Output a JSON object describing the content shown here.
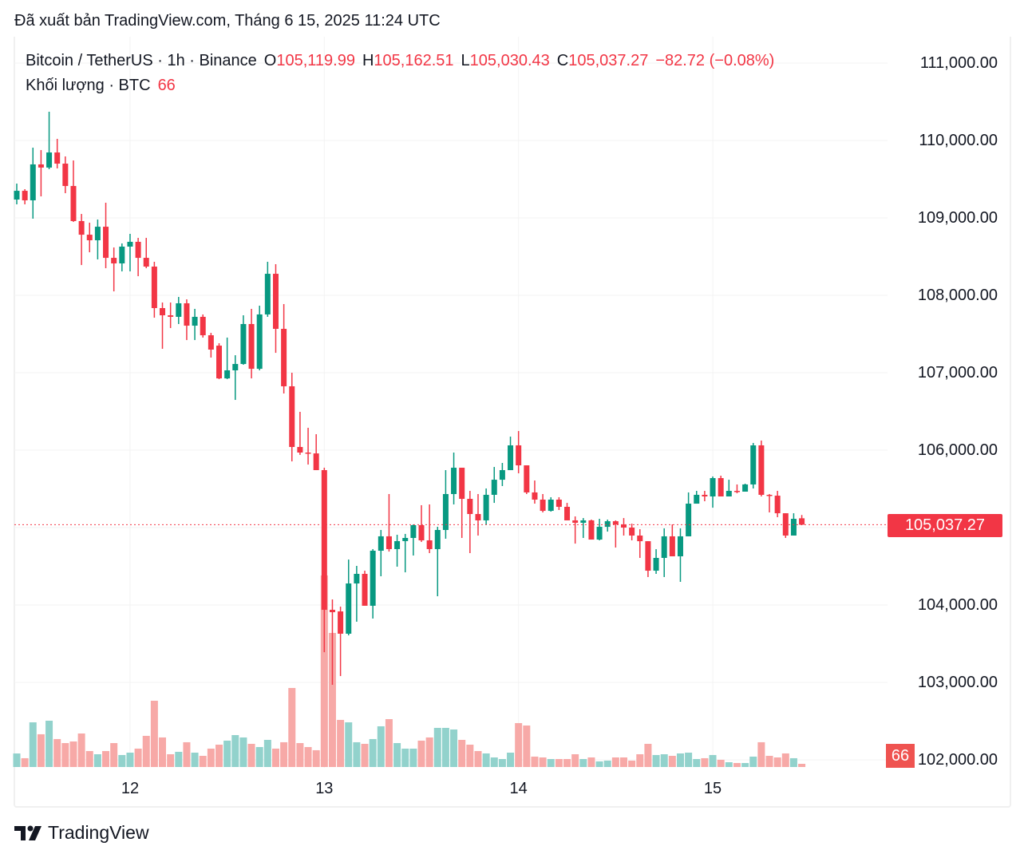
{
  "header": {
    "published": "Đã xuất bản TradingView.com, Tháng 6 15, 2025 11:24 UTC"
  },
  "legend": {
    "symbol": "Bitcoin / TetherUS · 1h · Binance",
    "o_label": "O",
    "o_value": "105,119.99",
    "h_label": "H",
    "h_value": "105,162.51",
    "l_label": "L",
    "l_value": "105,030.43",
    "c_label": "C",
    "c_value": "105,037.27",
    "change": "−82.72 (−0.08%)",
    "volume_label": "Khối lượng · BTC",
    "volume_value": "66"
  },
  "price_badge": "105,037.27",
  "volume_badge": "66",
  "footer": {
    "logo_text": "TradingView"
  },
  "colors": {
    "up": "#089981",
    "down": "#f23645",
    "up_vol": "#92d2cc",
    "down_vol": "#f7a9a7",
    "price_line": "#f23645"
  },
  "chart_data": {
    "type": "candlestick",
    "title": "Bitcoin / TetherUS · 1h · Binance",
    "interval": "1h",
    "ylim": [
      102000,
      111000
    ],
    "y_ticks": [
      {
        "value": 111000,
        "label": "111,000.00"
      },
      {
        "value": 110000,
        "label": "110,000.00"
      },
      {
        "value": 109000,
        "label": "109,000.00"
      },
      {
        "value": 108000,
        "label": "108,000.00"
      },
      {
        "value": 107000,
        "label": "107,000.00"
      },
      {
        "value": 106000,
        "label": "106,000.00"
      },
      {
        "value": 104000,
        "label": "104,000.00"
      },
      {
        "value": 103000,
        "label": "103,000.00"
      },
      {
        "value": 102000,
        "label": "102,000.00"
      }
    ],
    "x_ticks": [
      {
        "index": 14,
        "label": "12"
      },
      {
        "index": 38,
        "label": "13"
      },
      {
        "index": 62,
        "label": "14"
      },
      {
        "index": 86,
        "label": "15"
      }
    ],
    "last_price": 105037.27,
    "columns": [
      "open",
      "high",
      "low",
      "close",
      "volume"
    ],
    "candles": [
      [
        109237,
        109443,
        109175,
        109350,
        280
      ],
      [
        109350,
        109371,
        109175,
        109227,
        182
      ],
      [
        109227,
        109907,
        108990,
        109691,
        924
      ],
      [
        109691,
        109876,
        109278,
        109650,
        677
      ],
      [
        109650,
        110371,
        109629,
        109845,
        957
      ],
      [
        109845,
        110021,
        109639,
        109701,
        578
      ],
      [
        109701,
        109794,
        109319,
        109412,
        495
      ],
      [
        109412,
        109742,
        108948,
        108959,
        528
      ],
      [
        108959,
        109051,
        108391,
        108783,
        693
      ],
      [
        108783,
        108938,
        108556,
        108711,
        330
      ],
      [
        108711,
        108979,
        108464,
        108886,
        264
      ],
      [
        108886,
        109196,
        108350,
        108484,
        330
      ],
      [
        108484,
        108618,
        108051,
        108412,
        495
      ],
      [
        108412,
        108670,
        108309,
        108629,
        248
      ],
      [
        108629,
        108794,
        108309,
        108691,
        297
      ],
      [
        108691,
        108742,
        108247,
        108484,
        380
      ],
      [
        108484,
        108742,
        108350,
        108371,
        644
      ],
      [
        108371,
        108433,
        107711,
        107835,
        1370
      ],
      [
        107835,
        107907,
        107309,
        107742,
        611
      ],
      [
        107742,
        107907,
        107577,
        107722,
        264
      ],
      [
        107722,
        107979,
        107629,
        107897,
        314
      ],
      [
        107897,
        107948,
        107422,
        107608,
        512
      ],
      [
        107608,
        107825,
        107422,
        107722,
        297
      ],
      [
        107722,
        107753,
        107454,
        107484,
        231
      ],
      [
        107484,
        107515,
        107196,
        107299,
        380
      ],
      [
        107350,
        107381,
        106917,
        106927,
        462
      ],
      [
        106927,
        107454,
        106917,
        107031,
        545
      ],
      [
        107031,
        107226,
        106649,
        107113,
        660
      ],
      [
        107113,
        107742,
        107103,
        107629,
        611
      ],
      [
        107629,
        107825,
        106927,
        107051,
        479
      ],
      [
        107051,
        107866,
        107031,
        107753,
        413
      ],
      [
        107753,
        108433,
        107722,
        108278,
        561
      ],
      [
        108278,
        108402,
        107257,
        107567,
        380
      ],
      [
        107567,
        107887,
        106732,
        106825,
        512
      ],
      [
        106825,
        107000,
        105855,
        106041,
        1634
      ],
      [
        106041,
        106495,
        105939,
        105969,
        495
      ],
      [
        105969,
        106289,
        105814,
        105958,
        413
      ],
      [
        105958,
        106206,
        105742,
        105742,
        347
      ],
      [
        105742,
        105773,
        103391,
        103938,
        3960
      ],
      [
        103938,
        104072,
        102969,
        103907,
        2772
      ],
      [
        103917,
        103979,
        103082,
        103629,
        974
      ],
      [
        103629,
        104587,
        103608,
        104278,
        924
      ],
      [
        104278,
        104505,
        103784,
        104402,
        512
      ],
      [
        104402,
        104443,
        103990,
        103990,
        479
      ],
      [
        103990,
        104722,
        103825,
        104701,
        578
      ],
      [
        104701,
        104969,
        104371,
        104887,
        842
      ],
      [
        104887,
        105433,
        104690,
        104722,
        990
      ],
      [
        104722,
        104907,
        104495,
        104825,
        495
      ],
      [
        104825,
        104918,
        104422,
        104866,
        380
      ],
      [
        104866,
        105041,
        104639,
        105031,
        380
      ],
      [
        105031,
        105289,
        104814,
        104835,
        545
      ],
      [
        104835,
        105299,
        104670,
        104722,
        611
      ],
      [
        104722,
        105010,
        104113,
        104969,
        809
      ],
      [
        104969,
        105742,
        104856,
        105433,
        809
      ],
      [
        105433,
        105969,
        105299,
        105773,
        776
      ],
      [
        105773,
        105773,
        104866,
        105371,
        561
      ],
      [
        105371,
        105474,
        104670,
        105175,
        462
      ],
      [
        105175,
        105433,
        104897,
        105093,
        330
      ],
      [
        105093,
        105505,
        105031,
        105423,
        281
      ],
      [
        105423,
        105783,
        105319,
        105618,
        198
      ],
      [
        105618,
        105835,
        105536,
        105742,
        165
      ],
      [
        105742,
        106175,
        105742,
        106062,
        297
      ],
      [
        106062,
        106247,
        105701,
        105804,
        908
      ],
      [
        105804,
        105804,
        105433,
        105454,
        858
      ],
      [
        105454,
        105608,
        105309,
        105361,
        215
      ],
      [
        105361,
        105433,
        105196,
        105216,
        198
      ],
      [
        105216,
        105392,
        105206,
        105361,
        165
      ],
      [
        105361,
        105392,
        105227,
        105268,
        165
      ],
      [
        105268,
        105319,
        105093,
        105093,
        165
      ],
      [
        105093,
        105144,
        104793,
        105062,
        264
      ],
      [
        105062,
        105123,
        104866,
        105093,
        165
      ],
      [
        105093,
        105103,
        104845,
        104845,
        198
      ],
      [
        104845,
        105113,
        104835,
        105010,
        116
      ],
      [
        105010,
        105103,
        104948,
        105082,
        132
      ],
      [
        105082,
        105093,
        104742,
        105041,
        198
      ],
      [
        105041,
        105123,
        104897,
        105000,
        198
      ],
      [
        105000,
        105051,
        104835,
        104897,
        132
      ],
      [
        104897,
        104979,
        104608,
        104824,
        264
      ],
      [
        104824,
        104824,
        104361,
        104443,
        479
      ],
      [
        104443,
        104721,
        104402,
        104608,
        248
      ],
      [
        104608,
        104990,
        104361,
        104887,
        264
      ],
      [
        104887,
        105041,
        104629,
        104629,
        231
      ],
      [
        104629,
        104990,
        104299,
        104887,
        281
      ],
      [
        104887,
        105454,
        104887,
        105309,
        297
      ],
      [
        105309,
        105474,
        105309,
        105423,
        165
      ],
      [
        105423,
        105474,
        105340,
        105402,
        182
      ],
      [
        105402,
        105660,
        105257,
        105639,
        248
      ],
      [
        105639,
        105670,
        105402,
        105402,
        149
      ],
      [
        105402,
        105618,
        105402,
        105474,
        99
      ],
      [
        105474,
        105557,
        105443,
        105464,
        83
      ],
      [
        105464,
        105567,
        105464,
        105557,
        83
      ],
      [
        105557,
        106093,
        105505,
        106062,
        215
      ],
      [
        106062,
        106124,
        105402,
        105423,
        512
      ],
      [
        105423,
        105433,
        105196,
        105412,
        231
      ],
      [
        105412,
        105474,
        105134,
        105185,
        198
      ],
      [
        105185,
        105185,
        104866,
        104897,
        281
      ],
      [
        104897,
        105185,
        104897,
        105113,
        182
      ],
      [
        105119.99,
        105162.51,
        105030.43,
        105037.27,
        66
      ]
    ]
  }
}
